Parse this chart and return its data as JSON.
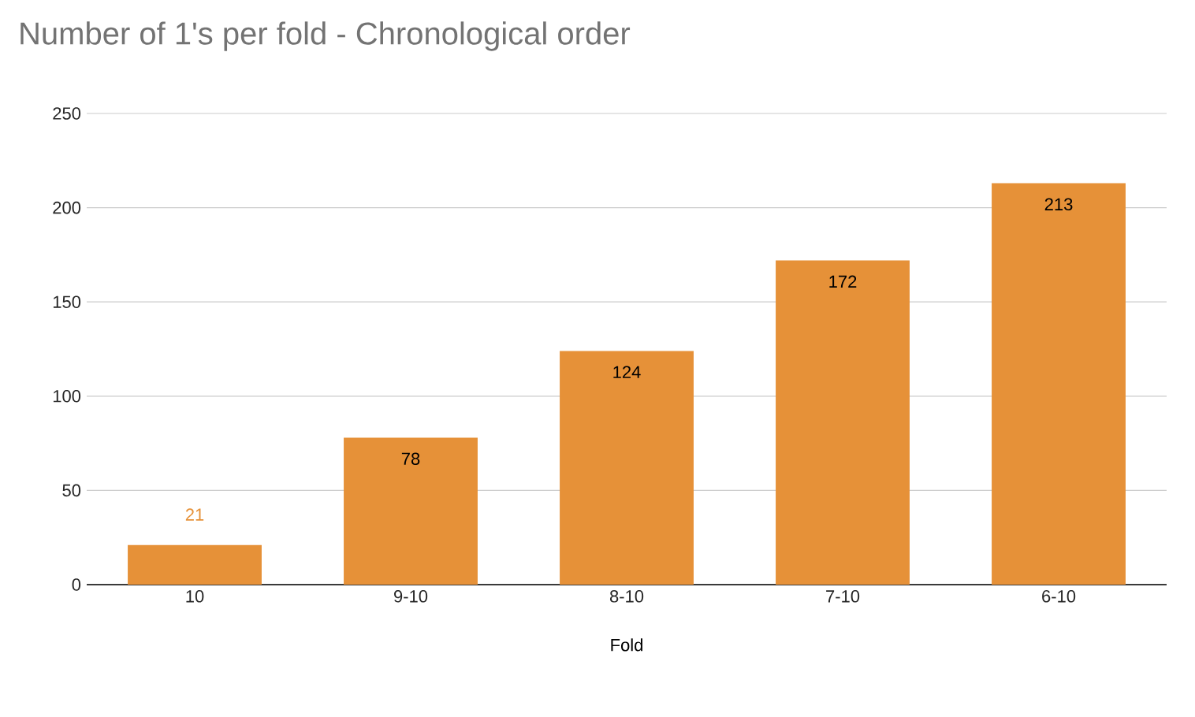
{
  "chart_data": {
    "type": "bar",
    "title": "Number of 1's per fold - Chronological order",
    "xlabel": "Fold",
    "categories": [
      "10",
      "9-10",
      "8-10",
      "7-10",
      "6-10"
    ],
    "values": [
      21,
      78,
      124,
      172,
      213
    ],
    "color": "#e69138",
    "ylim": [
      0,
      250
    ],
    "yticks": [
      0,
      50,
      100,
      150,
      200,
      250
    ],
    "grid": "y",
    "data_labels": true
  }
}
